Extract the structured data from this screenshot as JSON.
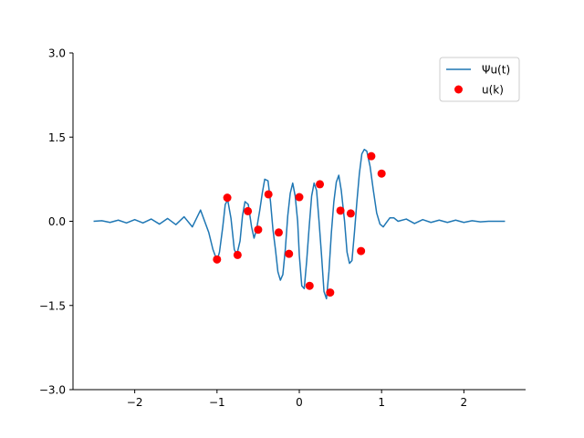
{
  "chart_data": {
    "type": "line",
    "title": "",
    "xlabel": "",
    "ylabel": "",
    "xlim": [
      -2.75,
      2.75
    ],
    "ylim": [
      -3.0,
      3.0
    ],
    "xticks": [
      -2,
      -1,
      0,
      1,
      2
    ],
    "xtick_labels": [
      "−2",
      "−1",
      "0",
      "1",
      "2"
    ],
    "yticks": [
      3.0,
      1.5,
      0.0,
      -1.5,
      -3.0
    ],
    "ytick_labels": [
      "3.0",
      "1.5",
      "0.0",
      "−1.5",
      "−3.0"
    ],
    "grid": false,
    "legend_position": "top-right",
    "series": [
      {
        "name": "Ψu(t)",
        "kind": "line",
        "color": "#1f77b4",
        "x": [
          -2.5,
          -2.4,
          -2.3,
          -2.2,
          -2.1,
          -2.0,
          -1.9,
          -1.8,
          -1.7,
          -1.6,
          -1.5,
          -1.4,
          -1.3,
          -1.2,
          -1.1,
          -1.05,
          -1.0,
          -0.97,
          -0.93,
          -0.9,
          -0.87,
          -0.83,
          -0.79,
          -0.76,
          -0.72,
          -0.69,
          -0.66,
          -0.62,
          -0.58,
          -0.55,
          -0.52,
          -0.48,
          -0.45,
          -0.42,
          -0.38,
          -0.35,
          -0.32,
          -0.29,
          -0.26,
          -0.23,
          -0.2,
          -0.17,
          -0.14,
          -0.11,
          -0.08,
          -0.05,
          -0.02,
          0.0,
          0.03,
          0.06,
          0.09,
          0.12,
          0.15,
          0.18,
          0.21,
          0.24,
          0.27,
          0.3,
          0.33,
          0.36,
          0.39,
          0.42,
          0.45,
          0.48,
          0.51,
          0.55,
          0.58,
          0.61,
          0.64,
          0.67,
          0.7,
          0.73,
          0.76,
          0.79,
          0.82,
          0.86,
          0.9,
          0.94,
          0.98,
          1.02,
          1.06,
          1.1,
          1.15,
          1.2,
          1.3,
          1.4,
          1.5,
          1.6,
          1.7,
          1.8,
          1.9,
          2.0,
          2.1,
          2.2,
          2.3,
          2.4,
          2.5
        ],
        "y": [
          0.0,
          0.01,
          -0.02,
          0.02,
          -0.03,
          0.03,
          -0.03,
          0.04,
          -0.05,
          0.05,
          -0.06,
          0.08,
          -0.1,
          0.2,
          -0.2,
          -0.5,
          -0.7,
          -0.55,
          -0.1,
          0.3,
          0.38,
          0.05,
          -0.5,
          -0.6,
          -0.35,
          0.1,
          0.35,
          0.3,
          -0.1,
          -0.3,
          -0.15,
          0.2,
          0.5,
          0.75,
          0.72,
          0.35,
          -0.15,
          -0.5,
          -0.9,
          -1.05,
          -0.95,
          -0.5,
          0.1,
          0.5,
          0.68,
          0.45,
          0.0,
          -0.6,
          -1.15,
          -1.2,
          -0.7,
          -0.1,
          0.45,
          0.68,
          0.55,
          0.0,
          -0.6,
          -1.25,
          -1.38,
          -0.9,
          -0.2,
          0.35,
          0.7,
          0.82,
          0.55,
          0.0,
          -0.55,
          -0.75,
          -0.7,
          -0.2,
          0.35,
          0.85,
          1.2,
          1.28,
          1.25,
          0.98,
          0.55,
          0.15,
          -0.05,
          -0.1,
          -0.02,
          0.06,
          0.06,
          0.0,
          0.04,
          -0.04,
          0.03,
          -0.02,
          0.02,
          -0.02,
          0.02,
          -0.02,
          0.01,
          -0.01,
          0.0,
          0.0,
          0.0
        ]
      },
      {
        "name": "u(k)",
        "kind": "scatter",
        "color": "#ff0000",
        "x": [
          -1.0,
          -0.875,
          -0.75,
          -0.625,
          -0.5,
          -0.375,
          -0.25,
          -0.125,
          0.0,
          0.125,
          0.25,
          0.375,
          0.5,
          0.625,
          0.75,
          0.875,
          1.0
        ],
        "y": [
          -0.68,
          0.42,
          -0.6,
          0.18,
          -0.15,
          0.48,
          -0.2,
          -0.58,
          0.43,
          -1.15,
          0.66,
          -1.27,
          0.19,
          0.14,
          -0.53,
          1.16,
          0.85
        ]
      }
    ]
  }
}
